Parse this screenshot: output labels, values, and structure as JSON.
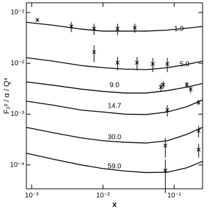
{
  "chart_data": {
    "type": "line",
    "x_label": "x",
    "y_label": "F₂ᵞ / α / Q⁴",
    "log_x": true,
    "log_y": true,
    "grid": false,
    "xlim": [
      0.00084,
      0.25
    ],
    "ylim": [
      3.4e-05,
      0.155
    ],
    "xticks": [
      {
        "value": 0.001,
        "label": "10⁻³"
      },
      {
        "value": 0.01,
        "label": "10⁻²"
      },
      {
        "value": 0.1,
        "label": "10⁻¹"
      }
    ],
    "yticks": [
      {
        "value": 0.0001,
        "label": "10⁻⁴"
      },
      {
        "value": 0.001,
        "label": "10⁻³"
      },
      {
        "value": 0.01,
        "label": "10⁻²"
      },
      {
        "value": 0.1,
        "label": "10⁻¹"
      }
    ],
    "x": [
      0.00084,
      0.002,
      0.005,
      0.01,
      0.02,
      0.04,
      0.08,
      0.15,
      0.25
    ],
    "series": [
      {
        "name": "1.9",
        "color": "#000000",
        "values": [
          0.064,
          0.056,
          0.047,
          0.043,
          0.043,
          0.043,
          0.045,
          0.049,
          0.053
        ],
        "points": {
          "x": [
            0.0012,
            0.0036,
            0.0075,
            0.016,
            0.028
          ],
          "values": [
            0.071,
            0.053,
            0.048,
            0.048,
            0.05
          ],
          "errors": [
            0.004,
            0.012,
            0.012,
            0.012,
            0.01
          ]
        }
      },
      {
        "name": "5.0",
        "color": "#000000",
        "values": [
          0.0129,
          0.011,
          0.009,
          0.0082,
          0.0077,
          0.0075,
          0.0082,
          0.0095,
          0.011
        ],
        "points": {
          "x": [
            0.0075,
            0.016,
            0.03,
            0.05,
            0.08
          ],
          "values": [
            0.0166,
            0.0103,
            0.0103,
            0.0097,
            0.0097
          ],
          "errors": [
            0.006,
            0.003,
            0.003,
            0.003,
            0.003
          ]
        }
      },
      {
        "name": "9.0",
        "color": "#000000",
        "values": [
          0.0043,
          0.0037,
          0.0031,
          0.0028,
          0.0026,
          0.0026,
          0.0029,
          0.0034,
          0.004
        ],
        "points": {
          "x": [
            0.065,
            0.07,
            0.15,
            0.17
          ],
          "values": [
            0.0034,
            0.0038,
            0.0038,
            0.0031
          ],
          "errors": [
            0.0006,
            0.0006,
            0.0005,
            0.0005
          ]
        }
      },
      {
        "name": "14.7",
        "color": "#000000",
        "values": [
          0.0018,
          0.0015,
          0.0012,
          0.0011,
          0.001,
          0.00098,
          0.0011,
          0.0014,
          0.0019
        ],
        "points": {
          "x": [
            0.08,
            0.22
          ],
          "values": [
            0.0012,
            0.0017
          ],
          "errors": [
            0.0003,
            0.0002
          ]
        }
      },
      {
        "name": "30.0",
        "color": "#000000",
        "values": [
          0.00055,
          0.00043,
          0.00034,
          0.0003,
          0.00028,
          0.00027,
          0.0003,
          0.0004,
          0.00055
        ],
        "points": {
          "x": [
            0.075,
            0.22
          ],
          "values": [
            0.00024,
            0.00047
          ],
          "errors": [
            0.0001,
            0.00012
          ]
        }
      },
      {
        "name": "59.0",
        "color": "#000000",
        "values": [
          0.00017,
          0.00013,
          0.0001,
          8.5e-05,
          7.6e-05,
          7.1e-05,
          7.2e-05,
          8.8e-05,
          0.000118
        ],
        "points": {
          "x": [
            0.075,
            0.22
          ],
          "values": [
            7.8e-05,
            0.0002
          ],
          "errors": [
            5e-05,
            6e-05
          ]
        }
      }
    ]
  }
}
